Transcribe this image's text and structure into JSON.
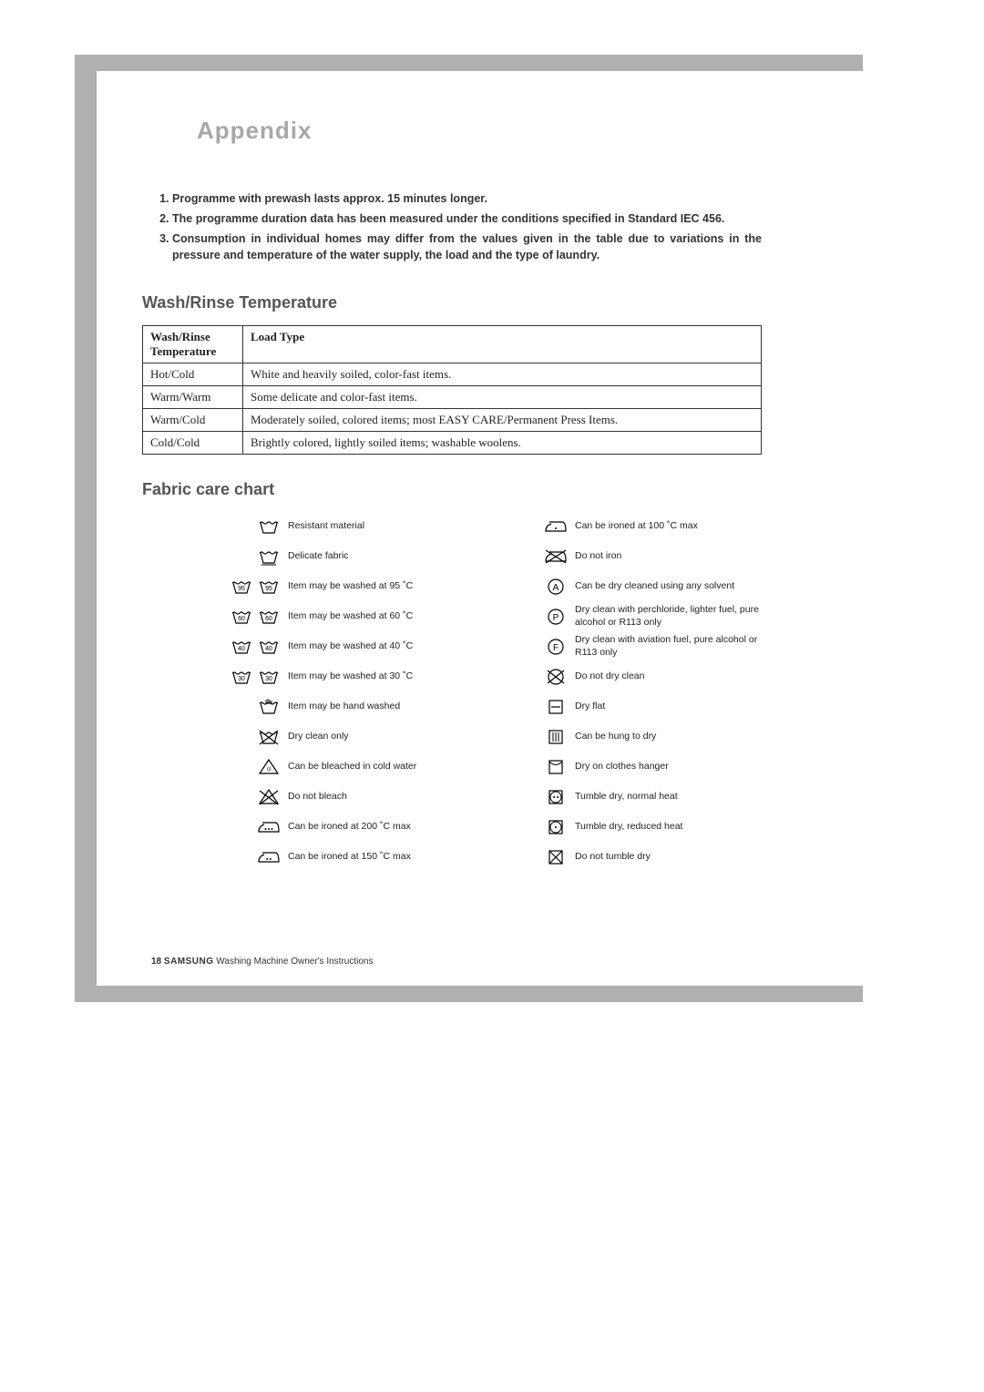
{
  "colors": {
    "gray_strip": "#b0b0b0",
    "title_gray": "#a8a8a8",
    "heading_gray": "#555555",
    "text": "#222222",
    "border": "#333333",
    "background": "#ffffff"
  },
  "title": "Appendix",
  "notes": [
    "Programme with prewash lasts approx. 15 minutes longer.",
    "The programme duration data has been measured under the conditions specified in Standard IEC 456.",
    "Consumption in individual homes may differ from the values given in the table due to variations in the pressure and temperature of the water supply, the load and the type of laundry."
  ],
  "section_wash": "Wash/Rinse Temperature",
  "temp_table": {
    "headers": [
      "Wash/Rinse Temperature",
      "Load Type"
    ],
    "rows": [
      [
        "Hot/Cold",
        "White and heavily soiled, color-fast items."
      ],
      [
        "Warm/Warm",
        "Some delicate and color-fast items."
      ],
      [
        "Warm/Cold",
        "Moderately soiled, colored items; most EASY CARE/Permanent Press Items."
      ],
      [
        "Cold/Cold",
        "Brightly colored, lightly soiled items; washable woolens."
      ]
    ]
  },
  "section_fabric": "Fabric care chart",
  "care_left": [
    {
      "icon": "tub",
      "label": "Resistant material"
    },
    {
      "icon": "tub-bar",
      "label": "Delicate fabric"
    },
    {
      "icon": "tub-95-pair",
      "val": "95",
      "label": "Item may be washed at 95 ˚C"
    },
    {
      "icon": "tub-60-pair",
      "val": "60",
      "label": "Item may be washed at 60 ˚C"
    },
    {
      "icon": "tub-40-pair",
      "val": "40",
      "label": "Item may be washed at 40 ˚C"
    },
    {
      "icon": "tub-30-pair",
      "val": "30",
      "label": "Item may be washed at 30 ˚C"
    },
    {
      "icon": "tub-hand",
      "label": "Item may be hand washed"
    },
    {
      "icon": "tub-x",
      "label": "Dry clean only"
    },
    {
      "icon": "bleach",
      "label": "Can be bleached in cold water"
    },
    {
      "icon": "bleach-x",
      "label": "Do not bleach"
    },
    {
      "icon": "iron-3",
      "label": "Can be ironed at 200 ˚C max"
    },
    {
      "icon": "iron-2",
      "label": "Can be ironed at 150 ˚C max"
    }
  ],
  "care_right": [
    {
      "icon": "iron-1",
      "label": "Can be ironed at 100 ˚C  max"
    },
    {
      "icon": "iron-x",
      "label": "Do not iron"
    },
    {
      "icon": "circ-A",
      "val": "A",
      "label": "Can be dry cleaned using any solvent"
    },
    {
      "icon": "circ-P",
      "val": "P",
      "label": "Dry clean with perchloride, lighter fuel, pure alcohol or R113 only"
    },
    {
      "icon": "circ-F",
      "val": "F",
      "label": "Dry clean with aviation fuel, pure alcohol or R113 only"
    },
    {
      "icon": "circ-x",
      "label": "Do not dry clean"
    },
    {
      "icon": "sq-dash",
      "label": "Dry flat"
    },
    {
      "icon": "sq-bars",
      "label": "Can be hung to dry"
    },
    {
      "icon": "sq-env",
      "label": "Dry on clothes hanger"
    },
    {
      "icon": "sq-circ-2",
      "label": "Tumble dry, normal heat"
    },
    {
      "icon": "sq-circ-1",
      "label": "Tumble dry, reduced heat"
    },
    {
      "icon": "sq-x",
      "label": "Do not tumble dry"
    }
  ],
  "footer": {
    "page": "18",
    "brand": "SAMSUNG",
    "rest": " Washing Machine Owner's Instructions"
  }
}
